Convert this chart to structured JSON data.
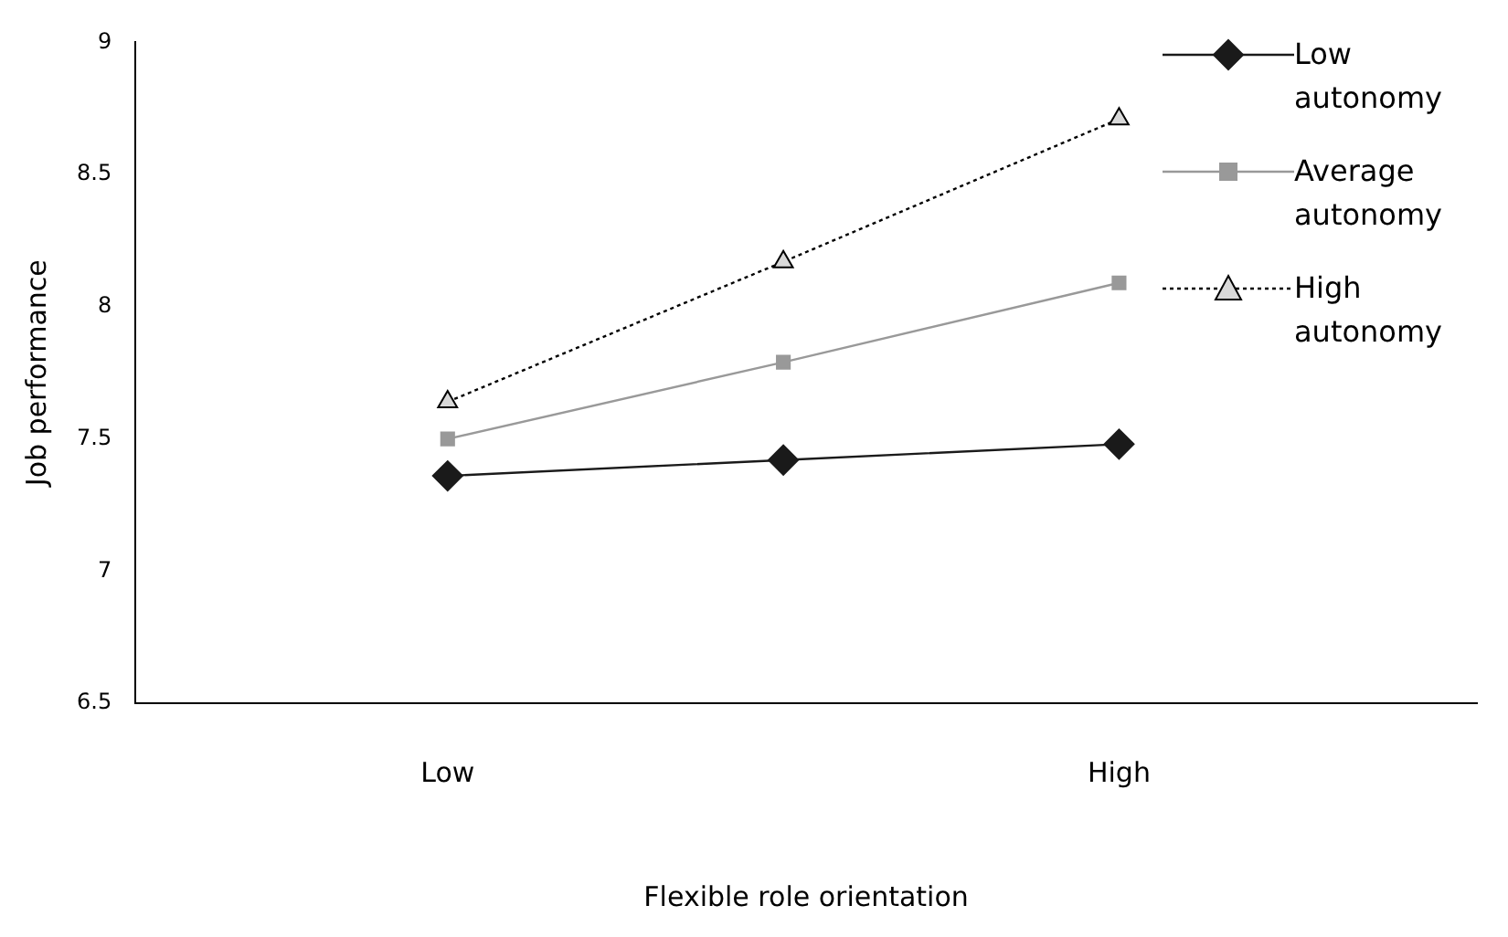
{
  "chart_data": {
    "type": "line",
    "xlabel": "Flexible role orientation",
    "ylabel": "Job performance",
    "categories": [
      "Low",
      null,
      "High"
    ],
    "series": [
      {
        "name": "Low autonomy",
        "color": "#1a1a1a",
        "marker": "diamond",
        "line_style": "solid",
        "values": [
          7.36,
          7.42,
          7.48
        ]
      },
      {
        "name": "Average autonomy",
        "color": "#999999",
        "marker": "square",
        "line_style": "solid",
        "values": [
          7.5,
          7.79,
          8.09
        ]
      },
      {
        "name": "High autonomy",
        "color": "#000000",
        "marker": "triangle",
        "line_style": "dotted",
        "values": [
          7.64,
          8.17,
          8.71
        ]
      }
    ],
    "ylim": [
      6.5,
      9
    ],
    "yticks": [
      6.5,
      7,
      7.5,
      8,
      8.5,
      9
    ],
    "grid": false,
    "legend": "top right"
  }
}
